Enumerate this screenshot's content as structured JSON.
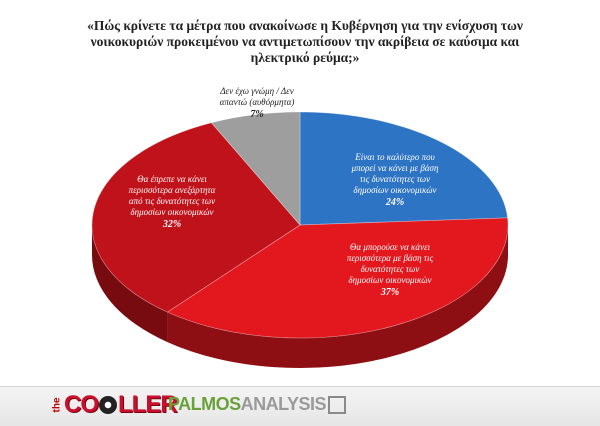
{
  "title": "«Πώς κρίνετε τα μέτρα που ανακοίνωσε η Κυβέρνηση για την ενίσχυση των νοικοκυριών προκειμένου να αντιμετωπίσουν την ακρίβεια σε καύσιμα και ηλεκτρικό ρεύμα;»",
  "chart_data": {
    "type": "pie",
    "title": "«Πώς κρίνετε τα μέτρα που ανακοίνωσε η Κυβέρνηση για την ενίσχυση των νοικοκυριών προκειμένου να αντιμετωπίσουν την ακρίβεια σε καύσιμα και ηλεκτρικό ρεύμα;»",
    "slices": [
      {
        "label": "Είναι το καλύτερο που μπορεί να κάνει με βάση τις δυνατότητες των δημοσίων οικονομικών",
        "label_lines": [
          "Είναι το καλύτερο που",
          "μπορεί να κάνει με βάση",
          "τις δυνατότητες των",
          "δημοσίων οικονομικών"
        ],
        "value": 24,
        "pct_text": "24%",
        "color": "#2e74c4"
      },
      {
        "label": "Θα μπορούσε να κάνει περισσότερα με βάση τις δυνατότητες των δημοσίων οικονομικών",
        "label_lines": [
          "Θα μπορούσε να κάνει",
          "περισσότερα με βάση τις",
          "δυνατότητες των",
          "δημοσίων οικονομικών"
        ],
        "value": 37,
        "pct_text": "37%",
        "color": "#e3171e"
      },
      {
        "label": "Θα έπρεπε να κάνει περισσότερα ανεξάρτητα από τις δυνατότητες των δημοσίων οικονομικών",
        "label_lines": [
          "Θα έπρεπε να κάνει",
          "περισσότερα ανεξάρτητα",
          "από τις δυνατότητες των",
          "δημοσίων οικονομικών"
        ],
        "value": 32,
        "pct_text": "32%",
        "color": "#c0121a"
      },
      {
        "label": "Δεν έχω γνώμη / Δεν απαντώ (αυθόρμητα)",
        "label_lines": [
          "Δεν έχω γνώμη / Δεν",
          "απαντώ (αυθόρμητα)"
        ],
        "value": 7,
        "pct_text": "7%",
        "color": "#9e9e9e"
      }
    ],
    "legend": "none"
  },
  "logos": {
    "coller_the": "the",
    "coller_word_a": "CO",
    "coller_word_b": "LLER",
    "palmos_a": "PALMOS",
    "palmos_b": "ANALYSIS"
  }
}
